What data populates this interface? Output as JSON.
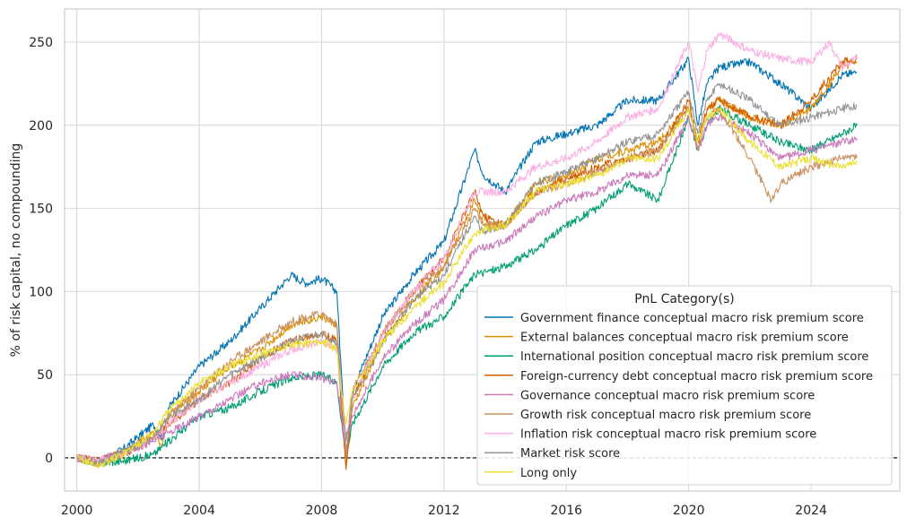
{
  "chart_data": {
    "type": "line",
    "xlabel": "",
    "ylabel": "% of risk capital, no compounding",
    "xlim": [
      1999.6,
      2026.9
    ],
    "ylim": [
      -20,
      270
    ],
    "x_ticks": [
      2000,
      2004,
      2008,
      2012,
      2016,
      2020,
      2024
    ],
    "x_tick_labels": [
      "2000",
      "2004",
      "2008",
      "2012",
      "2016",
      "2020",
      "2024"
    ],
    "y_ticks": [
      0,
      50,
      100,
      150,
      200,
      250
    ],
    "y_tick_labels": [
      "0",
      "50",
      "100",
      "150",
      "200",
      "250"
    ],
    "grid": true,
    "zero_line": {
      "y": 0,
      "style": "dashed",
      "color": "#000000"
    },
    "legend": {
      "title": "PnL Category(s)",
      "placement": "lower-right"
    },
    "series": [
      {
        "name": "Government finance conceptual macro risk premium score",
        "color": "#0173b2",
        "points": [
          [
            2000,
            0
          ],
          [
            2000.7,
            -3
          ],
          [
            2001.5,
            5
          ],
          [
            2002.5,
            20
          ],
          [
            2002.8,
            12
          ],
          [
            2003,
            30
          ],
          [
            2004,
            55
          ],
          [
            2005,
            70
          ],
          [
            2006,
            90
          ],
          [
            2007,
            110
          ],
          [
            2007.5,
            105
          ],
          [
            2008,
            108
          ],
          [
            2008.5,
            100
          ],
          [
            2008.8,
            0
          ],
          [
            2009,
            40
          ],
          [
            2010,
            85
          ],
          [
            2011,
            110
          ],
          [
            2012,
            130
          ],
          [
            2013,
            185
          ],
          [
            2013.3,
            170
          ],
          [
            2014,
            160
          ],
          [
            2015,
            190
          ],
          [
            2016,
            195
          ],
          [
            2017,
            200
          ],
          [
            2018,
            215
          ],
          [
            2019,
            215
          ],
          [
            2020,
            240
          ],
          [
            2020.3,
            200
          ],
          [
            2020.6,
            225
          ],
          [
            2021,
            235
          ],
          [
            2022,
            238
          ],
          [
            2023,
            225
          ],
          [
            2024,
            210
          ],
          [
            2025,
            230
          ],
          [
            2025.5,
            232
          ]
        ]
      },
      {
        "name": "External balances conceptual macro risk premium score",
        "color": "#de8f05",
        "points": [
          [
            2000,
            0
          ],
          [
            2000.7,
            -2
          ],
          [
            2001.5,
            3
          ],
          [
            2002.5,
            15
          ],
          [
            2002.8,
            8
          ],
          [
            2003,
            25
          ],
          [
            2004,
            40
          ],
          [
            2005,
            55
          ],
          [
            2006,
            65
          ],
          [
            2007,
            80
          ],
          [
            2008,
            85
          ],
          [
            2008.5,
            80
          ],
          [
            2008.8,
            -5
          ],
          [
            2009,
            30
          ],
          [
            2010,
            70
          ],
          [
            2011,
            95
          ],
          [
            2012,
            115
          ],
          [
            2013,
            155
          ],
          [
            2013.3,
            140
          ],
          [
            2014,
            140
          ],
          [
            2015,
            165
          ],
          [
            2016,
            170
          ],
          [
            2017,
            180
          ],
          [
            2018,
            185
          ],
          [
            2019,
            190
          ],
          [
            2020,
            210
          ],
          [
            2020.3,
            190
          ],
          [
            2020.6,
            210
          ],
          [
            2021,
            215
          ],
          [
            2022,
            205
          ],
          [
            2023,
            200
          ],
          [
            2024,
            210
          ],
          [
            2025,
            235
          ],
          [
            2025.5,
            238
          ]
        ]
      },
      {
        "name": "International position conceptual macro risk premium score",
        "color": "#029e73",
        "points": [
          [
            2000,
            0
          ],
          [
            2000.7,
            -3
          ],
          [
            2001.5,
            -2
          ],
          [
            2002.5,
            2
          ],
          [
            2003,
            10
          ],
          [
            2004,
            25
          ],
          [
            2005,
            30
          ],
          [
            2006,
            40
          ],
          [
            2007,
            48
          ],
          [
            2008,
            50
          ],
          [
            2008.5,
            45
          ],
          [
            2008.8,
            0
          ],
          [
            2009,
            20
          ],
          [
            2010,
            55
          ],
          [
            2011,
            75
          ],
          [
            2012,
            85
          ],
          [
            2013,
            110
          ],
          [
            2014,
            115
          ],
          [
            2015,
            125
          ],
          [
            2016,
            140
          ],
          [
            2017,
            150
          ],
          [
            2018,
            165
          ],
          [
            2019,
            155
          ],
          [
            2020,
            205
          ],
          [
            2020.3,
            185
          ],
          [
            2020.6,
            200
          ],
          [
            2021,
            210
          ],
          [
            2022,
            200
          ],
          [
            2023,
            190
          ],
          [
            2024,
            185
          ],
          [
            2025,
            195
          ],
          [
            2025.5,
            200
          ]
        ]
      },
      {
        "name": "Foreign-currency debt conceptual macro risk premium score",
        "color": "#d55e00",
        "points": [
          [
            2000,
            0
          ],
          [
            2000.7,
            -2
          ],
          [
            2001.5,
            2
          ],
          [
            2002.5,
            12
          ],
          [
            2003,
            20
          ],
          [
            2004,
            35
          ],
          [
            2005,
            45
          ],
          [
            2006,
            60
          ],
          [
            2007,
            70
          ],
          [
            2008,
            75
          ],
          [
            2008.5,
            70
          ],
          [
            2008.8,
            -7
          ],
          [
            2009,
            35
          ],
          [
            2010,
            75
          ],
          [
            2011,
            100
          ],
          [
            2012,
            120
          ],
          [
            2013,
            160
          ],
          [
            2013.3,
            145
          ],
          [
            2014,
            140
          ],
          [
            2015,
            160
          ],
          [
            2016,
            168
          ],
          [
            2017,
            175
          ],
          [
            2018,
            180
          ],
          [
            2019,
            185
          ],
          [
            2020,
            215
          ],
          [
            2020.3,
            190
          ],
          [
            2020.6,
            210
          ],
          [
            2021,
            215
          ],
          [
            2022,
            205
          ],
          [
            2023,
            200
          ],
          [
            2024,
            215
          ],
          [
            2025,
            238
          ],
          [
            2025.5,
            240
          ]
        ]
      },
      {
        "name": "Governance conceptual macro risk premium score",
        "color": "#cc78bc",
        "points": [
          [
            2000,
            0
          ],
          [
            2000.7,
            -2
          ],
          [
            2001.5,
            3
          ],
          [
            2002.5,
            10
          ],
          [
            2003,
            15
          ],
          [
            2004,
            25
          ],
          [
            2005,
            35
          ],
          [
            2006,
            45
          ],
          [
            2007,
            50
          ],
          [
            2008,
            48
          ],
          [
            2008.5,
            45
          ],
          [
            2008.8,
            5
          ],
          [
            2009,
            25
          ],
          [
            2010,
            60
          ],
          [
            2011,
            80
          ],
          [
            2012,
            95
          ],
          [
            2013,
            125
          ],
          [
            2014,
            130
          ],
          [
            2015,
            145
          ],
          [
            2016,
            155
          ],
          [
            2017,
            160
          ],
          [
            2018,
            170
          ],
          [
            2019,
            170
          ],
          [
            2020,
            205
          ],
          [
            2020.3,
            185
          ],
          [
            2020.6,
            200
          ],
          [
            2021,
            205
          ],
          [
            2022,
            195
          ],
          [
            2023,
            180
          ],
          [
            2024,
            185
          ],
          [
            2025,
            190
          ],
          [
            2025.5,
            192
          ]
        ]
      },
      {
        "name": "Growth risk conceptual macro risk premium score",
        "color": "#ca9161",
        "points": [
          [
            2000,
            0
          ],
          [
            2000.7,
            -3
          ],
          [
            2001.5,
            3
          ],
          [
            2002.5,
            12
          ],
          [
            2003,
            25
          ],
          [
            2004,
            42
          ],
          [
            2005,
            58
          ],
          [
            2006,
            70
          ],
          [
            2007,
            82
          ],
          [
            2008,
            87
          ],
          [
            2008.5,
            80
          ],
          [
            2008.8,
            0
          ],
          [
            2009,
            40
          ],
          [
            2010,
            75
          ],
          [
            2011,
            100
          ],
          [
            2012,
            115
          ],
          [
            2013,
            150
          ],
          [
            2013.3,
            140
          ],
          [
            2014,
            140
          ],
          [
            2015,
            160
          ],
          [
            2016,
            165
          ],
          [
            2017,
            172
          ],
          [
            2018,
            180
          ],
          [
            2019,
            185
          ],
          [
            2020,
            210
          ],
          [
            2020.3,
            185
          ],
          [
            2020.6,
            205
          ],
          [
            2021,
            210
          ],
          [
            2022,
            180
          ],
          [
            2022.7,
            155
          ],
          [
            2023,
            165
          ],
          [
            2024,
            175
          ],
          [
            2025,
            180
          ],
          [
            2025.5,
            182
          ]
        ]
      },
      {
        "name": "Inflation risk conceptual macro risk premium score",
        "color": "#fbafe4",
        "points": [
          [
            2000,
            0
          ],
          [
            2000.7,
            -2
          ],
          [
            2001.5,
            2
          ],
          [
            2002.5,
            12
          ],
          [
            2003,
            20
          ],
          [
            2004,
            35
          ],
          [
            2005,
            45
          ],
          [
            2006,
            55
          ],
          [
            2007,
            65
          ],
          [
            2008,
            70
          ],
          [
            2008.5,
            65
          ],
          [
            2008.8,
            10
          ],
          [
            2009,
            35
          ],
          [
            2010,
            75
          ],
          [
            2011,
            100
          ],
          [
            2012,
            120
          ],
          [
            2013,
            160
          ],
          [
            2014,
            160
          ],
          [
            2015,
            175
          ],
          [
            2016,
            180
          ],
          [
            2017,
            190
          ],
          [
            2018,
            205
          ],
          [
            2019,
            210
          ],
          [
            2020,
            250
          ],
          [
            2020.3,
            220
          ],
          [
            2020.6,
            245
          ],
          [
            2021,
            255
          ],
          [
            2022,
            245
          ],
          [
            2023,
            240
          ],
          [
            2024,
            238
          ],
          [
            2024.6,
            250
          ],
          [
            2025,
            235
          ],
          [
            2025.5,
            240
          ]
        ]
      },
      {
        "name": "Market risk score",
        "color": "#949494",
        "points": [
          [
            2000,
            0
          ],
          [
            2000.7,
            -3
          ],
          [
            2001.5,
            3
          ],
          [
            2002.5,
            12
          ],
          [
            2003,
            25
          ],
          [
            2004,
            35
          ],
          [
            2005,
            50
          ],
          [
            2006,
            60
          ],
          [
            2007,
            70
          ],
          [
            2008,
            75
          ],
          [
            2008.5,
            70
          ],
          [
            2008.8,
            10
          ],
          [
            2009,
            35
          ],
          [
            2010,
            70
          ],
          [
            2011,
            95
          ],
          [
            2012,
            110
          ],
          [
            2013,
            145
          ],
          [
            2013.3,
            135
          ],
          [
            2014,
            140
          ],
          [
            2015,
            165
          ],
          [
            2016,
            172
          ],
          [
            2017,
            180
          ],
          [
            2018,
            190
          ],
          [
            2019,
            195
          ],
          [
            2020,
            220
          ],
          [
            2020.3,
            195
          ],
          [
            2020.6,
            215
          ],
          [
            2021,
            225
          ],
          [
            2022,
            215
          ],
          [
            2023,
            200
          ],
          [
            2024,
            205
          ],
          [
            2025,
            210
          ],
          [
            2025.5,
            212
          ]
        ]
      },
      {
        "name": "Long only",
        "color": "#ece133",
        "points": [
          [
            2000,
            0
          ],
          [
            2000.7,
            -5
          ],
          [
            2001.5,
            2
          ],
          [
            2002.5,
            15
          ],
          [
            2003,
            28
          ],
          [
            2004,
            45
          ],
          [
            2005,
            55
          ],
          [
            2006,
            62
          ],
          [
            2007,
            68
          ],
          [
            2008,
            70
          ],
          [
            2008.5,
            65
          ],
          [
            2008.8,
            20
          ],
          [
            2009,
            40
          ],
          [
            2010,
            70
          ],
          [
            2011,
            90
          ],
          [
            2012,
            105
          ],
          [
            2013,
            135
          ],
          [
            2014,
            140
          ],
          [
            2015,
            160
          ],
          [
            2016,
            165
          ],
          [
            2017,
            170
          ],
          [
            2018,
            180
          ],
          [
            2019,
            180
          ],
          [
            2020,
            210
          ],
          [
            2020.3,
            190
          ],
          [
            2020.6,
            205
          ],
          [
            2021,
            210
          ],
          [
            2022,
            190
          ],
          [
            2023,
            175
          ],
          [
            2024,
            180
          ],
          [
            2025,
            175
          ],
          [
            2025.5,
            178
          ]
        ]
      }
    ]
  }
}
